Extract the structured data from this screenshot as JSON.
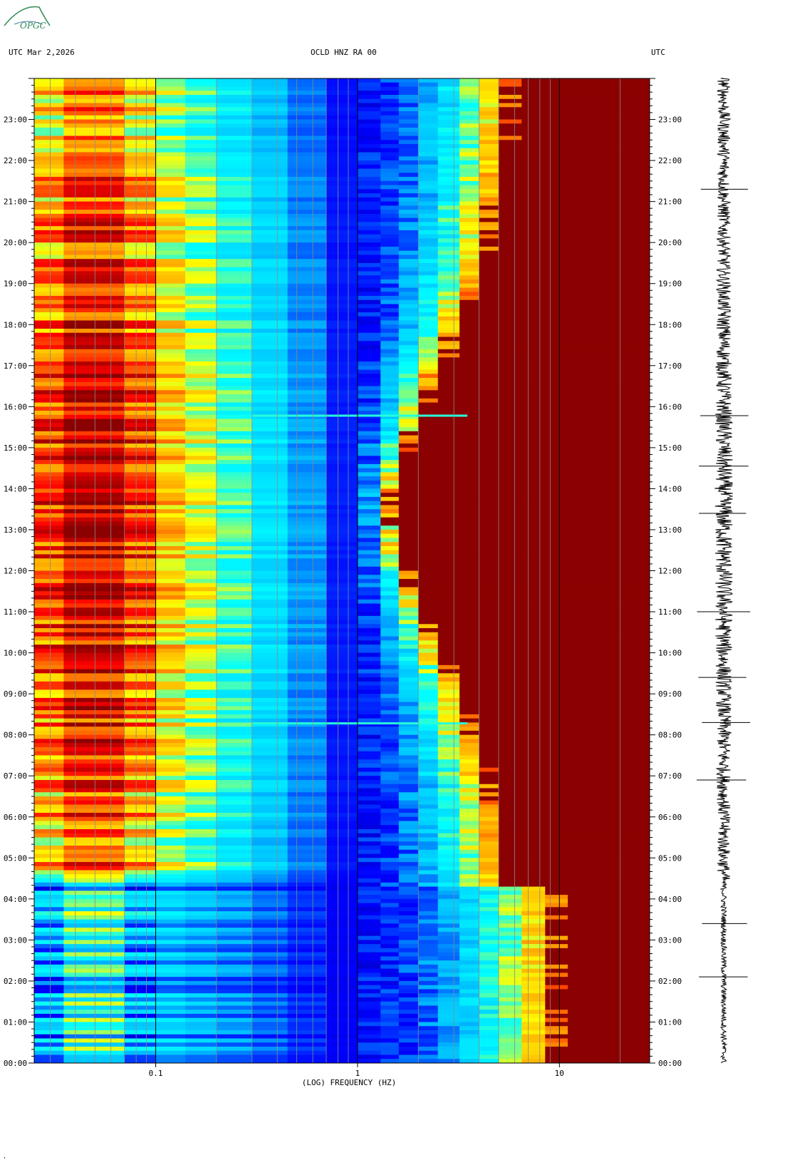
{
  "header": {
    "left_label": "UTC  Mar 2,2026",
    "center_label": "OCLD HNZ RA 00",
    "right_label": "UTC"
  },
  "logo": {
    "text": "OPGC",
    "color": "#2e8b57"
  },
  "footer": {
    "mark": "ʽ"
  },
  "chart_data": {
    "type": "heatmap",
    "title": "OCLD HNZ RA 00",
    "date": "Mar 2,2026",
    "xlabel": "(LOG) FREQUENCY (HZ)",
    "ylabel": "UTC",
    "x_scale": "log",
    "xlim": [
      0.025,
      28
    ],
    "x_tick_values": [
      0.1,
      1,
      10
    ],
    "x_ticks": [
      "0.1",
      "1",
      "10"
    ],
    "ylim_hours": [
      0,
      24
    ],
    "y_ticks": [
      "00:00",
      "01:00",
      "02:00",
      "03:00",
      "04:00",
      "05:00",
      "06:00",
      "07:00",
      "08:00",
      "09:00",
      "10:00",
      "11:00",
      "12:00",
      "13:00",
      "14:00",
      "15:00",
      "16:00",
      "17:00",
      "18:00",
      "19:00",
      "20:00",
      "21:00",
      "22:00",
      "23:00"
    ],
    "colormap": [
      "#00008b",
      "#0000ff",
      "#00bfff",
      "#00ffff",
      "#ffff00",
      "#ff8c00",
      "#ff0000",
      "#8b0000"
    ],
    "features": [
      {
        "description_hz_boundary_start": 1.5,
        "description_hz_boundary_end": 6.0
      },
      {
        "event_hour": 15.78
      },
      {
        "event_hour": 8.28
      }
    ],
    "seismogram_color": "#000000"
  }
}
